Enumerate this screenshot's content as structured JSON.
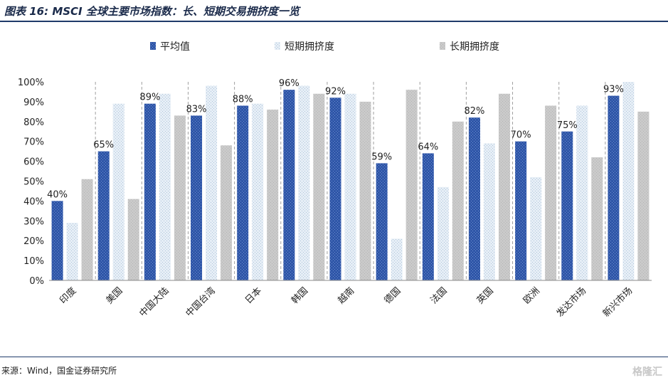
{
  "title": "图表 16: MSCI 全球主要市场指数：长、短期交易拥挤度一览",
  "source": "来源：Wind，国金证券研究所",
  "watermark": "格隆汇",
  "colors": {
    "avg": "#2f56a8",
    "short": "#dfe9f3",
    "long": "#c8c8c8",
    "rule": "#1f3a6a"
  },
  "chart_data": {
    "type": "bar",
    "title": "图表 16: MSCI 全球主要市场指数：长、短期交易拥挤度一览",
    "xlabel": "",
    "ylabel": "",
    "ylim": [
      0,
      100
    ],
    "yticks": [
      "0%",
      "10%",
      "20%",
      "30%",
      "40%",
      "50%",
      "60%",
      "70%",
      "80%",
      "90%",
      "100%"
    ],
    "categories": [
      "印度",
      "美国",
      "中国大陆",
      "中国台湾",
      "日本",
      "韩国",
      "越南",
      "德国",
      "法国",
      "英国",
      "欧洲",
      "发达市场",
      "新兴市场"
    ],
    "series": [
      {
        "name": "平均值",
        "values": [
          40,
          65,
          89,
          83,
          88,
          96,
          92,
          59,
          64,
          82,
          70,
          75,
          93
        ],
        "labels": [
          "40%",
          "65%",
          "89%",
          "83%",
          "88%",
          "96%",
          "92%",
          "59%",
          "64%",
          "82%",
          "70%",
          "75%",
          "93%"
        ]
      },
      {
        "name": "短期拥挤度",
        "values": [
          29,
          89,
          94,
          98,
          89,
          98,
          94,
          21,
          47,
          69,
          52,
          88,
          100
        ]
      },
      {
        "name": "长期拥挤度",
        "values": [
          51,
          41,
          83,
          68,
          86,
          94,
          90,
          96,
          80,
          94,
          88,
          62,
          85
        ]
      }
    ],
    "legend_position": "top",
    "grid": false
  }
}
